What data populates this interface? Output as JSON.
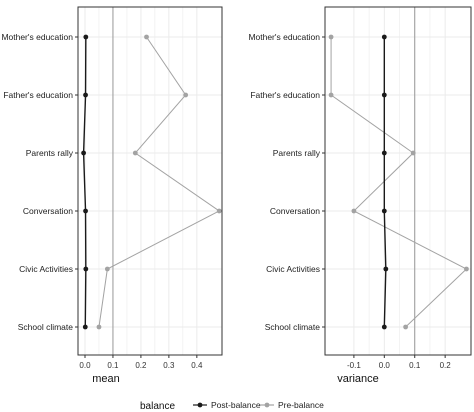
{
  "colors": {
    "post": "#1a1a1a",
    "pre": "#a3a3a3",
    "threshold": "#999999",
    "grid": "#ebebeb",
    "frame": "#333333"
  },
  "legend": {
    "title": "balance",
    "items": [
      {
        "label": "Post-balance",
        "color": "#1a1a1a"
      },
      {
        "label": "Pre-balance",
        "color": "#a3a3a3"
      }
    ],
    "placement": "bottom"
  },
  "chart_data": [
    {
      "type": "line",
      "orientation": "horizontal",
      "xlabel": "mean",
      "categories": [
        "Mother's education",
        "Father's education",
        "Parents rally",
        "Conversation",
        "Civic Activities",
        "School climate"
      ],
      "xlim": [
        -0.025,
        0.49
      ],
      "xticks": [
        {
          "value": 0.0,
          "label": "0.0"
        },
        {
          "value": 0.1,
          "label": "0.1"
        },
        {
          "value": 0.2,
          "label": "0.2"
        },
        {
          "value": 0.3,
          "label": "0.3"
        },
        {
          "value": 0.4,
          "label": "0.4"
        }
      ],
      "threshold": 0.1,
      "grid": true,
      "series": [
        {
          "name": "Post-balance",
          "values": [
            0.003,
            0.002,
            -0.005,
            0.002,
            0.003,
            0.001
          ]
        },
        {
          "name": "Pre-balance",
          "values": [
            0.22,
            0.36,
            0.18,
            0.48,
            0.08,
            0.05
          ]
        }
      ]
    },
    {
      "type": "line",
      "orientation": "horizontal",
      "xlabel": "variance",
      "categories": [
        "Mother's education",
        "Father's education",
        "Parents rally",
        "Conversation",
        "Civic Activities",
        "School climate"
      ],
      "xlim": [
        -0.195,
        0.285
      ],
      "xticks": [
        {
          "value": -0.1,
          "label": "-0.1"
        },
        {
          "value": 0.0,
          "label": "0.0"
        },
        {
          "value": 0.1,
          "label": "0.1"
        },
        {
          "value": 0.2,
          "label": "0.2"
        }
      ],
      "threshold": 0.1,
      "grid": true,
      "series": [
        {
          "name": "Post-balance",
          "values": [
            0.0,
            0.0,
            0.0,
            0.0,
            0.005,
            0.0
          ]
        },
        {
          "name": "Pre-balance",
          "values": [
            -0.175,
            -0.175,
            0.095,
            -0.1,
            0.27,
            0.07
          ]
        }
      ]
    }
  ]
}
